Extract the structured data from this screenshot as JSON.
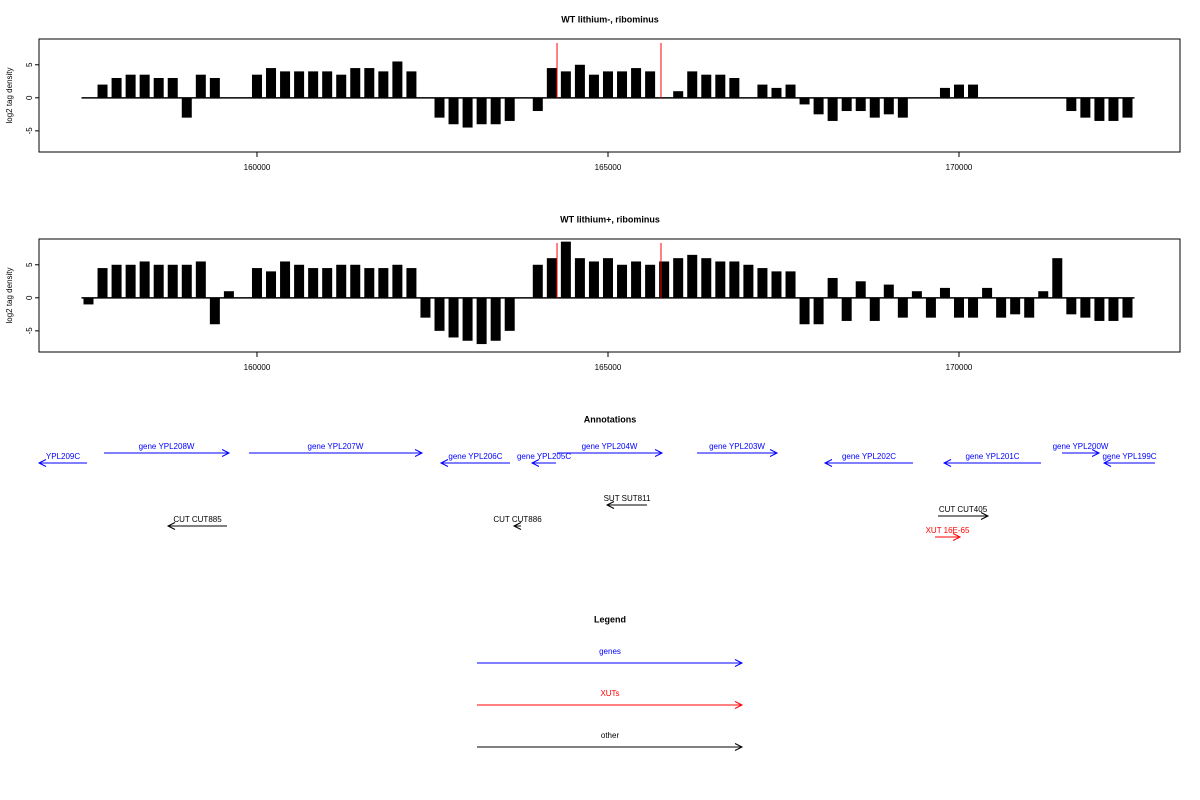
{
  "chart_data": [
    {
      "type": "bar",
      "title": "WT lithium-, ribominus",
      "y_label": "log2 tag density",
      "color": "#000000",
      "x": [
        157600,
        157800,
        158000,
        158200,
        158400,
        158600,
        158800,
        159000,
        159200,
        159400,
        159600,
        159800,
        160000,
        160200,
        160400,
        160600,
        160800,
        161000,
        161200,
        161400,
        161600,
        161800,
        162000,
        162200,
        162400,
        162600,
        162800,
        163000,
        163200,
        163400,
        163600,
        163800,
        164000,
        164200,
        164400,
        164600,
        164800,
        165000,
        165200,
        165400,
        165600,
        165800,
        166000,
        166200,
        166400,
        166600,
        166800,
        167000,
        167200,
        167400,
        167600,
        167800,
        168000,
        168200,
        168400,
        168600,
        168800,
        169000,
        169200,
        169400,
        169600,
        169800,
        170000,
        170200,
        170400,
        170600,
        170800,
        171000,
        171200,
        171400,
        171600,
        171800,
        172000,
        172200,
        172400
      ],
      "values": [
        0,
        2,
        3,
        3.5,
        3.5,
        3,
        3,
        -3,
        3.5,
        3,
        0,
        0,
        3.5,
        4.5,
        4,
        4,
        4,
        4,
        3.5,
        4.5,
        4.5,
        4,
        5.5,
        4,
        0,
        -3,
        -4,
        -4.5,
        -4,
        -4,
        -3.5,
        0,
        -2,
        4.5,
        4,
        5,
        3.5,
        4,
        4,
        4.5,
        4,
        0,
        1,
        4,
        3.5,
        3.5,
        3,
        0,
        2,
        1.5,
        2,
        -1,
        -2.5,
        -3.5,
        -2,
        -2,
        -3,
        -2.5,
        -3,
        0,
        0,
        1.5,
        2,
        2,
        0,
        0,
        0,
        0,
        0,
        0,
        -2,
        -3,
        -3.5,
        -3.5,
        -3
      ],
      "markers": [
        164274,
        165755
      ],
      "marker_color": "#ff0000",
      "xlim": [
        156895,
        173148
      ],
      "xticks": [
        160000,
        165000,
        170000
      ],
      "ylim": [
        -8.2,
        8.9
      ],
      "yticks": [
        -5,
        0,
        5
      ]
    },
    {
      "type": "bar",
      "title": "WT lithium+, ribominus",
      "y_label": "log2 tag density",
      "color": "#000000",
      "x": [
        157600,
        157800,
        158000,
        158200,
        158400,
        158600,
        158800,
        159000,
        159200,
        159400,
        159600,
        159800,
        160000,
        160200,
        160400,
        160600,
        160800,
        161000,
        161200,
        161400,
        161600,
        161800,
        162000,
        162200,
        162400,
        162600,
        162800,
        163000,
        163200,
        163400,
        163600,
        163800,
        164000,
        164200,
        164400,
        164600,
        164800,
        165000,
        165200,
        165400,
        165600,
        165800,
        166000,
        166200,
        166400,
        166600,
        166800,
        167000,
        167200,
        167400,
        167600,
        167800,
        168000,
        168200,
        168400,
        168600,
        168800,
        169000,
        169200,
        169400,
        169600,
        169800,
        170000,
        170200,
        170400,
        170600,
        170800,
        171000,
        171200,
        171400,
        171600,
        171800,
        172000,
        172200,
        172400
      ],
      "values": [
        -1,
        4.5,
        5,
        5,
        5.5,
        5,
        5,
        5,
        5.5,
        -4,
        1,
        0,
        4.5,
        4,
        5.5,
        5,
        4.5,
        4.5,
        5,
        5,
        4.5,
        4.5,
        5,
        4.5,
        -3,
        -5,
        -6,
        -6.5,
        -7,
        -6.5,
        -5,
        0,
        5,
        6,
        8.5,
        6,
        5.5,
        6,
        5,
        5.5,
        5,
        5.5,
        6,
        6.5,
        6,
        5.5,
        5.5,
        5,
        4.5,
        4,
        4,
        -4,
        -4,
        3,
        -3.5,
        2.5,
        -3.5,
        2,
        -3,
        1,
        -3,
        1.5,
        -3,
        -3,
        1.5,
        -3,
        -2.5,
        -3,
        1,
        6,
        -2.5,
        -3,
        -3.5,
        -3.5,
        -3
      ],
      "markers": [
        164274,
        165755
      ],
      "marker_color": "#ff0000",
      "xlim": [
        156895,
        173148
      ],
      "xticks": [
        160000,
        165000,
        170000
      ],
      "ylim": [
        -8.2,
        8.9
      ],
      "yticks": [
        -5,
        0,
        5
      ]
    }
  ],
  "annotations": {
    "title": "Annotations",
    "features": [
      {
        "label": "YPL209C",
        "from": 157579,
        "to": 156895,
        "color": "#0000ff"
      },
      {
        "label": "gene YPL208W",
        "from": 157821,
        "to": 159602,
        "color": "#0000ff"
      },
      {
        "label": "gene YPL207W",
        "from": 159886,
        "to": 162351,
        "color": "#0000ff"
      },
      {
        "label": "gene YPL206C",
        "from": 163604,
        "to": 162621,
        "color": "#0000ff"
      },
      {
        "label": "gene YPL205C",
        "from": 164260,
        "to": 163918,
        "color": "#0000ff"
      },
      {
        "label": "gene YPL204W",
        "from": 164274,
        "to": 165770,
        "color": "#0000ff"
      },
      {
        "label": "gene YPL203W",
        "from": 166268,
        "to": 167408,
        "color": "#0000ff"
      },
      {
        "label": "gene YPL202C",
        "from": 169345,
        "to": 168091,
        "color": "#0000ff"
      },
      {
        "label": "gene YPL201C",
        "from": 171168,
        "to": 169787,
        "color": "#0000ff"
      },
      {
        "label": "gene YPL200W",
        "from": 171467,
        "to": 171995,
        "color": "#0000ff"
      },
      {
        "label": "gene YPL199C",
        "from": 172792,
        "to": 172066,
        "color": "#0000ff"
      },
      {
        "label": "SUT SUT811",
        "from": 165556,
        "to": 164986,
        "color": "#000000"
      },
      {
        "label": "CUT CUT885",
        "from": 159573,
        "to": 158733,
        "color": "#000000"
      },
      {
        "label": "CUT CUT886",
        "from": 163761,
        "to": 163661,
        "color": "#000000"
      },
      {
        "label": "CUT CUT405",
        "from": 169701,
        "to": 170413,
        "color": "#000000"
      },
      {
        "label": "XUT 16E-65",
        "from": 169658,
        "to": 170015,
        "color": "#ff0000"
      }
    ]
  },
  "legend": {
    "title": "Legend",
    "entries": [
      {
        "label": "genes",
        "color": "#0000ff"
      },
      {
        "label": "XUTs",
        "color": "#ff0000"
      },
      {
        "label": "other",
        "color": "#000000"
      }
    ]
  }
}
